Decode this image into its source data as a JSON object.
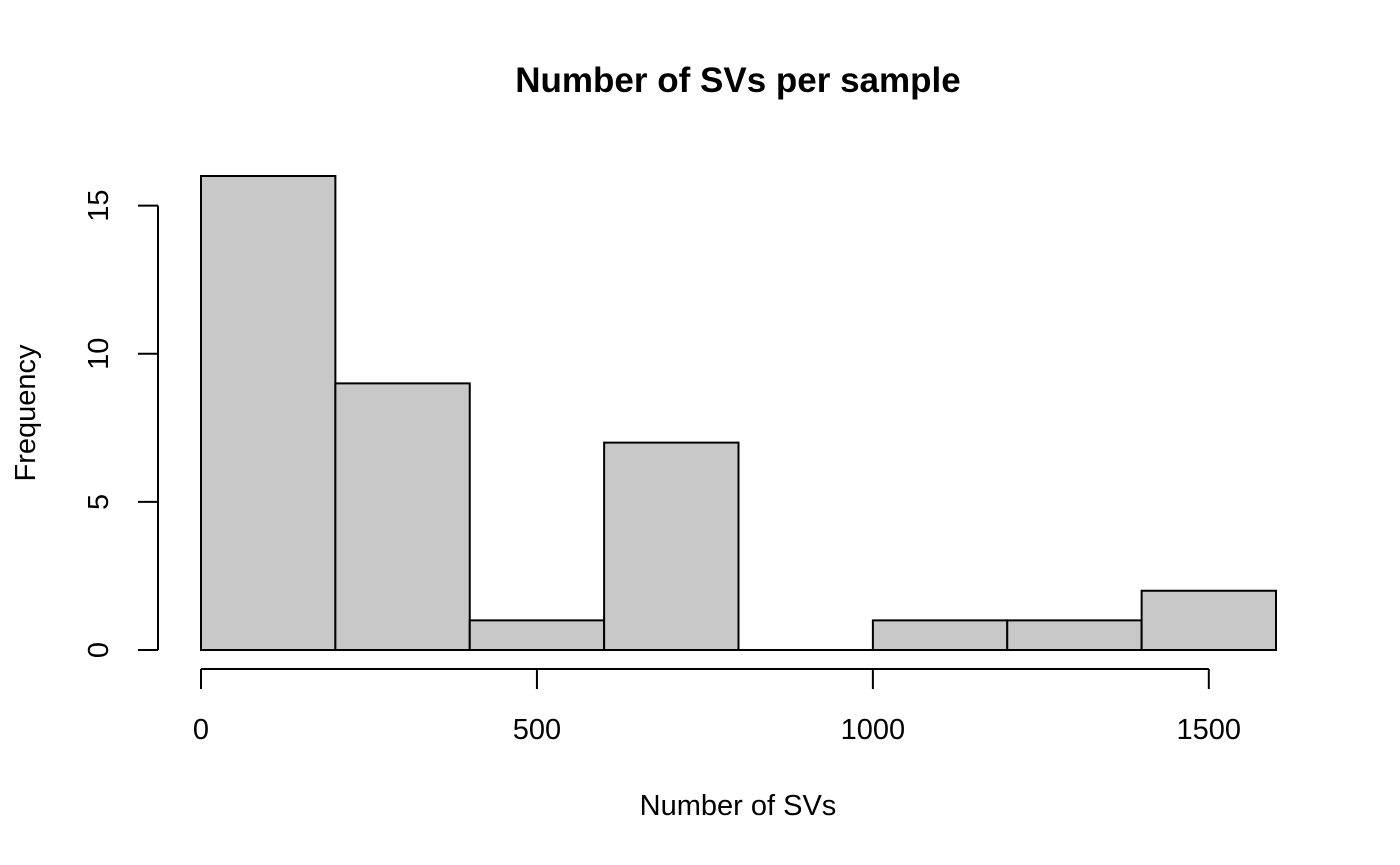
{
  "chart_data": {
    "type": "bar",
    "subtype": "histogram",
    "title": "Number of SVs per sample",
    "xlabel": "Number of SVs",
    "ylabel": "Frequency",
    "bins": [
      {
        "start": 0,
        "end": 200,
        "count": 16
      },
      {
        "start": 200,
        "end": 400,
        "count": 9
      },
      {
        "start": 400,
        "end": 600,
        "count": 1
      },
      {
        "start": 600,
        "end": 800,
        "count": 7
      },
      {
        "start": 800,
        "end": 1000,
        "count": 0
      },
      {
        "start": 1000,
        "end": 1200,
        "count": 1
      },
      {
        "start": 1200,
        "end": 1400,
        "count": 1
      },
      {
        "start": 1400,
        "end": 1600,
        "count": 2
      }
    ],
    "xticks": [
      0,
      500,
      1000,
      1500
    ],
    "yticks": [
      0,
      5,
      10,
      15
    ],
    "xlim": [
      0,
      1600
    ],
    "ylim": [
      0,
      16
    ],
    "grid": false,
    "bar_color": "#c8c8c8",
    "edge_color": "#000000"
  }
}
